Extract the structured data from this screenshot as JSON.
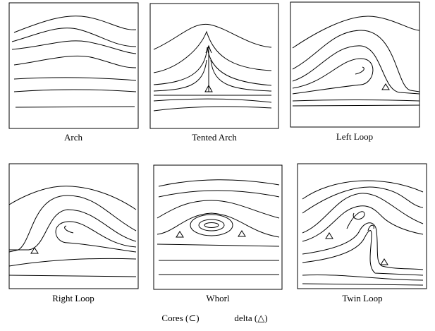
{
  "panels": [
    {
      "label": "Arch"
    },
    {
      "label": "Tented Arch"
    },
    {
      "label": "Left Loop"
    },
    {
      "label": "Right Loop"
    },
    {
      "label": "Whorl"
    },
    {
      "label": "Twin Loop"
    }
  ],
  "legend": {
    "cores": "Cores (⊂)",
    "delta": "delta (△)"
  }
}
